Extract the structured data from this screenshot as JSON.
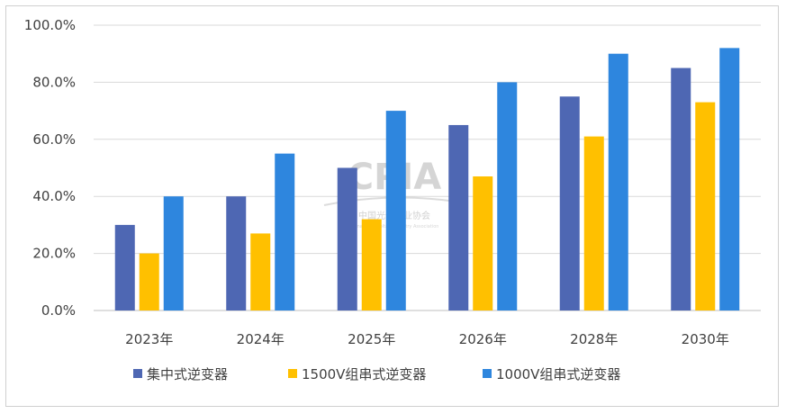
{
  "chart_data": {
    "type": "bar",
    "categories": [
      "2023年",
      "2024年",
      "2025年",
      "2026年",
      "2028年",
      "2030年"
    ],
    "series": [
      {
        "name": "集中式逆变器",
        "color": "#4e67b3",
        "values": [
          30,
          40,
          50,
          65,
          75,
          85
        ]
      },
      {
        "name": "1500V组串式逆变器",
        "color": "#ffc000",
        "values": [
          20,
          27,
          32,
          47,
          61,
          73
        ]
      },
      {
        "name": "1000V组串式逆变器",
        "color": "#2e86de",
        "values": [
          40,
          55,
          70,
          80,
          90,
          92
        ]
      }
    ],
    "y_ticks": [
      "0.0%",
      "20.0%",
      "40.0%",
      "60.0%",
      "80.0%",
      "100.0%"
    ],
    "ylim": [
      0,
      100
    ],
    "grid": true,
    "legend_position": "bottom"
  },
  "watermark": {
    "logo_text": "CPIA",
    "name": "中国光伏行业协会",
    "english": "China Photovoltaic Industry Association"
  }
}
